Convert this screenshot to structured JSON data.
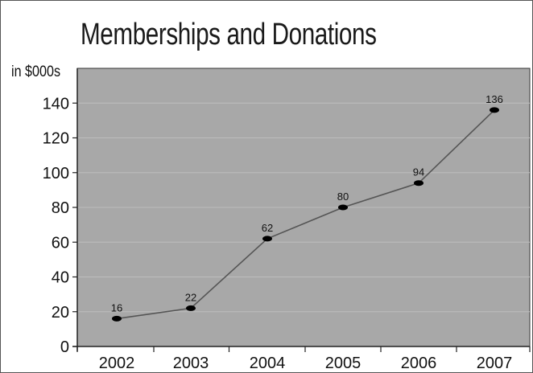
{
  "chart_data": {
    "type": "line",
    "title": "Memberships and Donations",
    "ylabel": "in $000s",
    "xlabel": "",
    "categories": [
      "2002",
      "2003",
      "2004",
      "2005",
      "2006",
      "2007"
    ],
    "values": [
      16,
      22,
      62,
      80,
      94,
      136
    ],
    "data_labels": [
      "16",
      "22",
      "62",
      "80",
      "94",
      "136"
    ],
    "ylim": [
      0,
      160
    ],
    "yticks": [
      0,
      20,
      40,
      60,
      80,
      100,
      120,
      140
    ],
    "grid": true,
    "legend": "none",
    "colors": {
      "plot_background": "#a8a8a8",
      "gridline": "#bdbdbd",
      "line": "#555555",
      "marker": "#000000"
    }
  }
}
